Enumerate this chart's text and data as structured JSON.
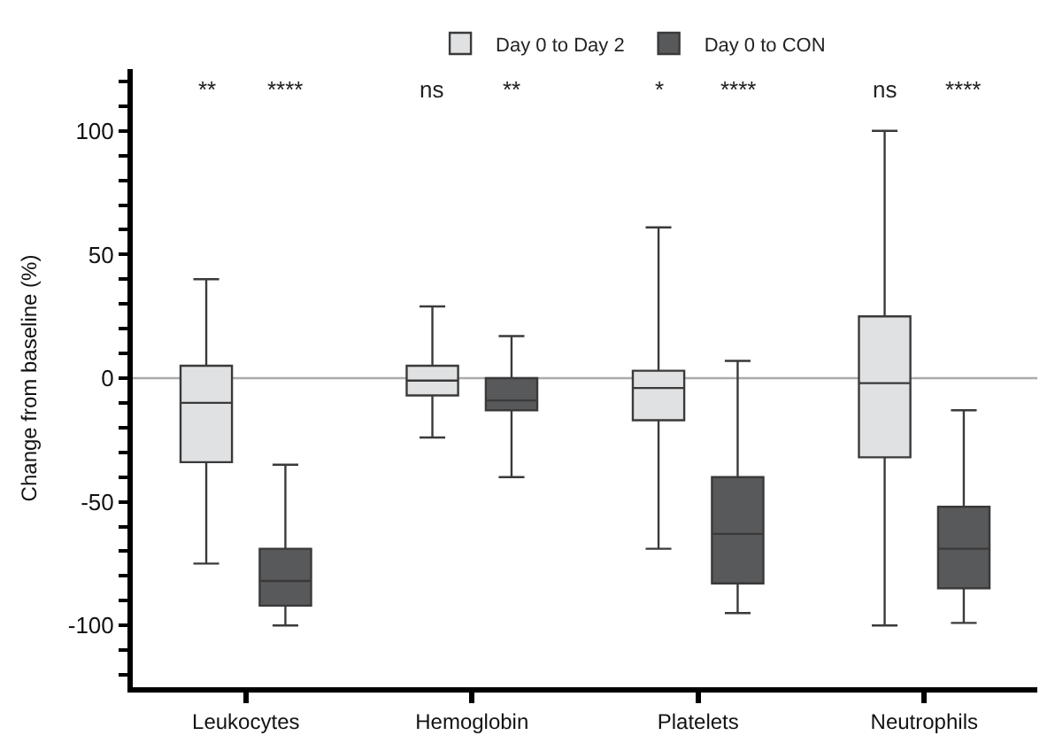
{
  "chart_data": {
    "type": "box",
    "categories": [
      "Leukocytes",
      "Hemoglobin",
      "Platelets",
      "Neutrophils"
    ],
    "ylabel": "Change from baseline (%)",
    "ylim": [
      -125,
      125
    ],
    "yticks": [
      {
        "value": -120,
        "label": null
      },
      {
        "value": -110,
        "label": null
      },
      -100,
      {
        "value": -90,
        "label": null
      },
      {
        "value": -80,
        "label": null
      },
      {
        "value": -70,
        "label": null
      },
      {
        "value": -60,
        "label": null
      },
      -50,
      {
        "value": -40,
        "label": null
      },
      {
        "value": -30,
        "label": null
      },
      {
        "value": -20,
        "label": null
      },
      {
        "value": -10,
        "label": null
      },
      0,
      {
        "value": 10,
        "label": null
      },
      {
        "value": 20,
        "label": null
      },
      {
        "value": 30,
        "label": null
      },
      {
        "value": 40,
        "label": null
      },
      50,
      {
        "value": 60,
        "label": null
      },
      {
        "value": 70,
        "label": null
      },
      {
        "value": 80,
        "label": null
      },
      {
        "value": 90,
        "label": null
      },
      100,
      {
        "value": 110,
        "label": null
      },
      {
        "value": 120,
        "label": null
      }
    ],
    "series": [
      {
        "name": "Day 0 to Day 2",
        "color": "#e0e1e3",
        "boxes": [
          {
            "low": -75,
            "q1": -34,
            "median": -10,
            "q3": 5,
            "high": 40
          },
          {
            "low": -24,
            "q1": -7,
            "median": -1,
            "q3": 5,
            "high": 29
          },
          {
            "low": -69,
            "q1": -17,
            "median": -4,
            "q3": 3,
            "high": 61
          },
          {
            "low": -100,
            "q1": -32,
            "median": -2,
            "q3": 25,
            "high": 100
          }
        ]
      },
      {
        "name": "Day 0 to CON",
        "color": "#58595b",
        "boxes": [
          {
            "low": -100,
            "q1": -92,
            "median": -82,
            "q3": -69,
            "high": -35
          },
          {
            "low": -40,
            "q1": -13,
            "median": -9,
            "q3": 0,
            "high": 17
          },
          {
            "low": -95,
            "q1": -83,
            "median": -63,
            "q3": -40,
            "high": 7
          },
          {
            "low": -99,
            "q1": -85,
            "median": -69,
            "q3": -52,
            "high": -13
          }
        ]
      }
    ],
    "annotations": [
      "**",
      "****",
      "ns",
      "**",
      "*",
      "****",
      "ns",
      "****"
    ],
    "ref_lines": [
      {
        "axis": "y",
        "value": 0,
        "color": "#aaaaaa"
      }
    ],
    "legend": "top",
    "grid": false
  }
}
